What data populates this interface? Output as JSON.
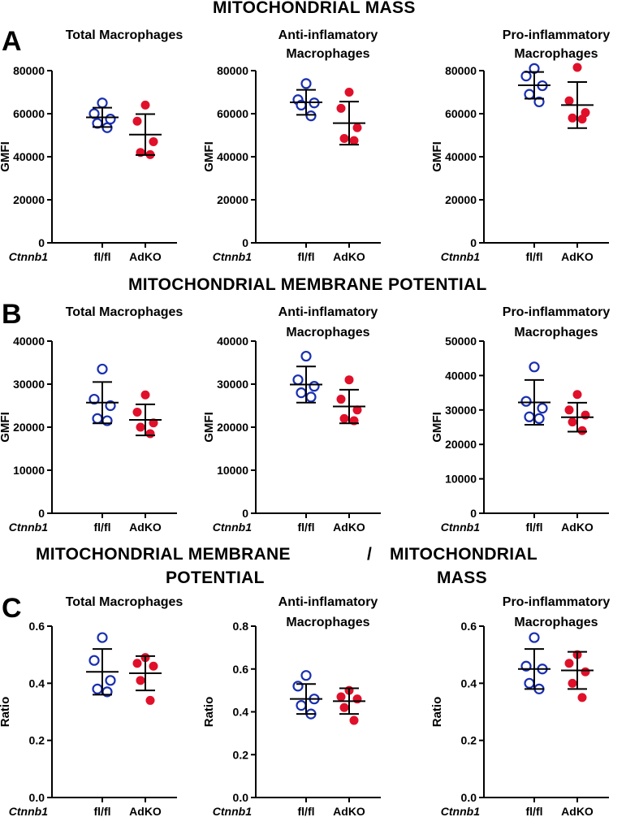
{
  "figure": {
    "section_titles": {
      "a": "MITOCHONDRIAL MASS",
      "b": "MITOCHONDRIAL MEMBRANE POTENTIAL",
      "c_line1_left": "MITOCHONDRIAL MEMBRANE",
      "c_line1_sep": "/",
      "c_line1_right": "MITOCHONDRIAL",
      "c_line2_left": "POTENTIAL",
      "c_line2_right": "MASS"
    },
    "panel_letters": {
      "a": "A",
      "b": "B",
      "c": "C"
    },
    "gene_label": "Ctnnb1",
    "colors": {
      "flfl": "#1a2fb0",
      "adko": "#e0102a",
      "axis": "#000000"
    }
  },
  "chart_data": [
    {
      "id": "a1",
      "type": "scatter",
      "title": [
        "Total Macrophages"
      ],
      "ylabel": "GMFI",
      "categories": [
        "fl/fl",
        "AdKO"
      ],
      "ylim": [
        0,
        80000
      ],
      "yticks": [
        0,
        20000,
        40000,
        60000,
        80000
      ],
      "ytick_labels": [
        "0",
        "20000",
        "40000",
        "60000",
        "80000"
      ],
      "series": [
        {
          "name": "fl/fl",
          "values": [
            65000,
            60000,
            57500,
            55500,
            53500
          ],
          "mean": 58300,
          "sd": 4500
        },
        {
          "name": "AdKO",
          "values": [
            64000,
            56500,
            47000,
            42000,
            41000
          ],
          "mean": 50300,
          "sd": 9500
        }
      ]
    },
    {
      "id": "a2",
      "type": "scatter",
      "title": [
        "Anti-inflamatory",
        "Macrophages"
      ],
      "ylabel": "GMFI",
      "categories": [
        "fl/fl",
        "AdKO"
      ],
      "ylim": [
        0,
        80000
      ],
      "yticks": [
        0,
        20000,
        40000,
        60000,
        80000
      ],
      "ytick_labels": [
        "0",
        "20000",
        "40000",
        "60000",
        "80000"
      ],
      "series": [
        {
          "name": "fl/fl",
          "values": [
            74000,
            66500,
            65000,
            64000,
            59000
          ],
          "mean": 65300,
          "sd": 5800
        },
        {
          "name": "AdKO",
          "values": [
            70000,
            62500,
            53500,
            48500,
            47500
          ],
          "mean": 55600,
          "sd": 10000
        }
      ]
    },
    {
      "id": "a3",
      "type": "scatter",
      "title": [
        "Pro-inflammatory",
        "Macrophages"
      ],
      "ylabel": "GMFI",
      "categories": [
        "fl/fl",
        "AdKO"
      ],
      "ylim": [
        0,
        80000
      ],
      "yticks": [
        0,
        20000,
        40000,
        60000,
        80000
      ],
      "ytick_labels": [
        "0",
        "20000",
        "40000",
        "60000",
        "80000"
      ],
      "series": [
        {
          "name": "fl/fl",
          "values": [
            81000,
            77500,
            73000,
            69000,
            65500
          ],
          "mean": 73200,
          "sd": 6200
        },
        {
          "name": "AdKO",
          "values": [
            81500,
            66000,
            60500,
            58000,
            57500
          ],
          "mean": 64000,
          "sd": 10700
        }
      ]
    },
    {
      "id": "b1",
      "type": "scatter",
      "title": [
        "Total Macrophages"
      ],
      "ylabel": "GMFI",
      "categories": [
        "fl/fl",
        "AdKO"
      ],
      "ylim": [
        0,
        40000
      ],
      "yticks": [
        0,
        10000,
        20000,
        30000,
        40000
      ],
      "ytick_labels": [
        "0",
        "10000",
        "20000",
        "30000",
        "40000"
      ],
      "series": [
        {
          "name": "fl/fl",
          "values": [
            33500,
            26500,
            25000,
            22000,
            21500
          ],
          "mean": 25700,
          "sd": 4800
        },
        {
          "name": "AdKO",
          "values": [
            27500,
            23500,
            21000,
            20000,
            18500
          ],
          "mean": 21700,
          "sd": 3600
        }
      ]
    },
    {
      "id": "b2",
      "type": "scatter",
      "title": [
        "Anti-inflamatory",
        "Macrophages"
      ],
      "ylabel": "GMFI",
      "categories": [
        "fl/fl",
        "AdKO"
      ],
      "ylim": [
        0,
        40000
      ],
      "yticks": [
        0,
        10000,
        20000,
        30000,
        40000
      ],
      "ytick_labels": [
        "0",
        "10000",
        "20000",
        "30000",
        "40000"
      ],
      "series": [
        {
          "name": "fl/fl",
          "values": [
            36500,
            31000,
            29500,
            28000,
            27000
          ],
          "mean": 29900,
          "sd": 4200
        },
        {
          "name": "AdKO",
          "values": [
            31000,
            26500,
            24000,
            22000,
            21500
          ],
          "mean": 24800,
          "sd": 3900
        }
      ]
    },
    {
      "id": "b3",
      "type": "scatter",
      "title": [
        "Pro-inflammatory",
        "Macrophages"
      ],
      "ylabel": "GMFI",
      "categories": [
        "fl/fl",
        "AdKO"
      ],
      "ylim": [
        0,
        50000
      ],
      "yticks": [
        0,
        10000,
        20000,
        30000,
        40000,
        50000
      ],
      "ytick_labels": [
        "0",
        "10000",
        "20000",
        "30000",
        "40000",
        "50000"
      ],
      "series": [
        {
          "name": "fl/fl",
          "values": [
            42500,
            32500,
            30500,
            28000,
            27500
          ],
          "mean": 32200,
          "sd": 6500
        },
        {
          "name": "AdKO",
          "values": [
            34500,
            30000,
            28500,
            26500,
            24000
          ],
          "mean": 27900,
          "sd": 4200
        }
      ]
    },
    {
      "id": "c1",
      "type": "scatter",
      "title": [
        "Total Macrophages"
      ],
      "ylabel": "Ratio",
      "categories": [
        "fl/fl",
        "AdKO"
      ],
      "ylim": [
        0,
        0.6
      ],
      "yticks": [
        0,
        0.2,
        0.4,
        0.6
      ],
      "ytick_labels": [
        "0.0",
        "0.2",
        "0.4",
        "0.6"
      ],
      "series": [
        {
          "name": "fl/fl",
          "values": [
            0.56,
            0.48,
            0.41,
            0.38,
            0.37
          ],
          "mean": 0.44,
          "sd": 0.08
        },
        {
          "name": "AdKO",
          "values": [
            0.49,
            0.47,
            0.46,
            0.41,
            0.34
          ],
          "mean": 0.435,
          "sd": 0.06
        }
      ]
    },
    {
      "id": "c2",
      "type": "scatter",
      "title": [
        "Anti-inflamatory",
        "Macrophages"
      ],
      "ylabel": "Ratio",
      "categories": [
        "fl/fl",
        "AdKO"
      ],
      "ylim": [
        0,
        0.8
      ],
      "yticks": [
        0,
        0.2,
        0.4,
        0.6,
        0.8
      ],
      "ytick_labels": [
        "0.0",
        "0.2",
        "0.4",
        "0.6",
        "0.8"
      ],
      "series": [
        {
          "name": "fl/fl",
          "values": [
            0.57,
            0.52,
            0.46,
            0.43,
            0.39
          ],
          "mean": 0.46,
          "sd": 0.07
        },
        {
          "name": "AdKO",
          "values": [
            0.5,
            0.47,
            0.46,
            0.42,
            0.36
          ],
          "mean": 0.45,
          "sd": 0.06
        }
      ]
    },
    {
      "id": "c3",
      "type": "scatter",
      "title": [
        "Pro-inflammatory",
        "Macrophages"
      ],
      "ylabel": "Ratio",
      "categories": [
        "fl/fl",
        "AdKO"
      ],
      "ylim": [
        0,
        0.6
      ],
      "yticks": [
        0,
        0.2,
        0.4,
        0.6
      ],
      "ytick_labels": [
        "0.0",
        "0.2",
        "0.4",
        "0.6"
      ],
      "series": [
        {
          "name": "fl/fl",
          "values": [
            0.56,
            0.46,
            0.45,
            0.4,
            0.38
          ],
          "mean": 0.45,
          "sd": 0.07
        },
        {
          "name": "AdKO",
          "values": [
            0.5,
            0.47,
            0.44,
            0.4,
            0.35
          ],
          "mean": 0.445,
          "sd": 0.065
        }
      ]
    }
  ]
}
